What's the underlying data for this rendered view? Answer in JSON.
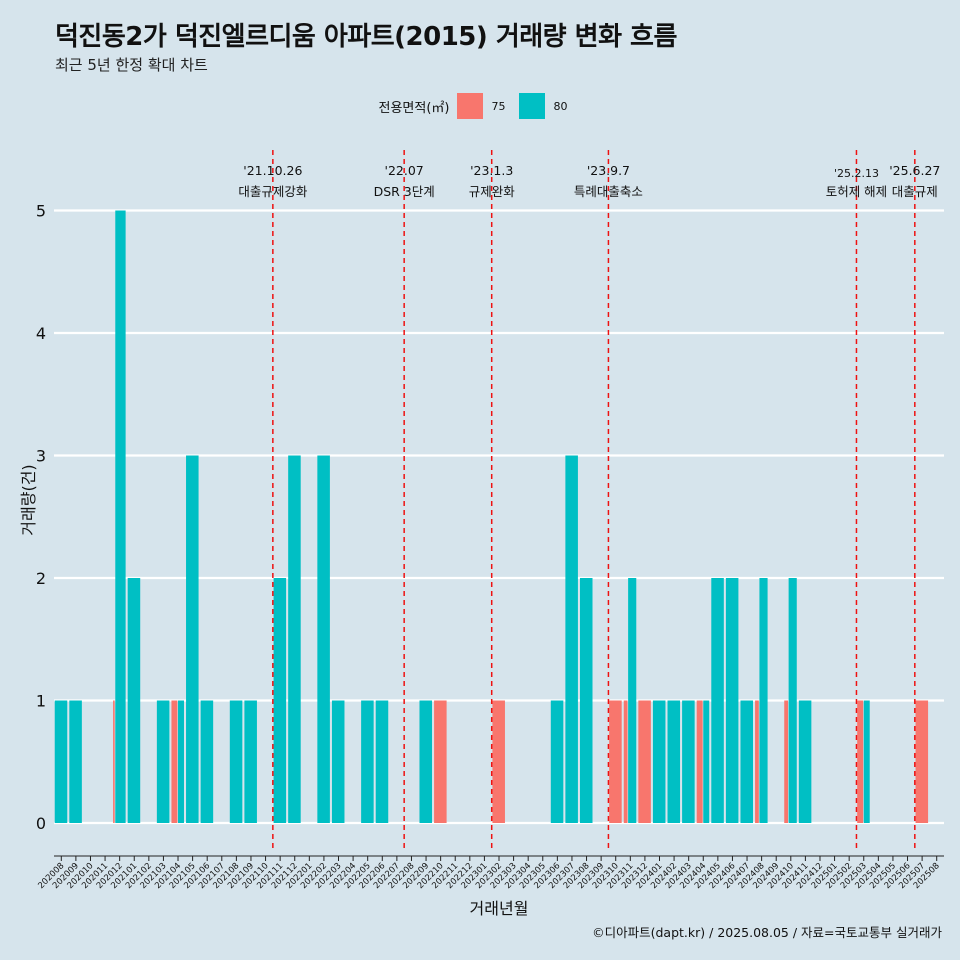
{
  "title": "덕진동2가 덕진엘르디움 아파트(2015) 거래량 변화 흐름",
  "subtitle": "최근 5년 한정 확대 차트",
  "caption": "©디아파트(dapt.kr) / 2025.08.05 / 자료=국토교통부 실거래가",
  "legend": {
    "title": "전용면적(㎡)",
    "items": [
      {
        "label": "75",
        "color": "#f8766d"
      },
      {
        "label": "80",
        "color": "#00bfc4"
      }
    ]
  },
  "chart_data": {
    "type": "bar",
    "xlabel": "거래년월",
    "ylabel": "거래량(건)",
    "ylim": [
      0,
      5
    ],
    "y_ticks": [
      "0",
      "1",
      "2",
      "3",
      "4",
      "5"
    ],
    "grid": true,
    "legend_position": "top",
    "categories": [
      "202008",
      "202009",
      "202010",
      "202011",
      "202012",
      "202101",
      "202102",
      "202103",
      "202104",
      "202105",
      "202106",
      "202107",
      "202108",
      "202109",
      "202110",
      "202111",
      "202112",
      "202201",
      "202202",
      "202203",
      "202204",
      "202205",
      "202206",
      "202207",
      "202208",
      "202209",
      "202210",
      "202211",
      "202212",
      "202301",
      "202302",
      "202303",
      "202304",
      "202305",
      "202306",
      "202307",
      "202308",
      "202309",
      "202310",
      "202311",
      "202312",
      "202401",
      "202402",
      "202403",
      "202404",
      "202405",
      "202406",
      "202407",
      "202408",
      "202409",
      "202410",
      "202411",
      "202412",
      "202501",
      "202502",
      "202503",
      "202504",
      "202505",
      "202506",
      "202507",
      "202508"
    ],
    "series": [
      {
        "name": "75",
        "color": "#f8766d",
        "values": [
          0,
          0,
          0,
          0,
          1,
          0,
          0,
          0,
          1,
          0,
          0,
          0,
          0,
          0,
          0,
          0,
          0,
          0,
          0,
          0,
          0,
          0,
          0,
          0,
          0,
          0,
          1,
          0,
          0,
          0,
          1,
          0,
          0,
          0,
          0,
          0,
          0,
          0,
          1,
          1,
          1,
          0,
          0,
          0,
          1,
          0,
          0,
          0,
          1,
          0,
          1,
          0,
          0,
          0,
          0,
          1,
          0,
          0,
          0,
          1,
          0
        ]
      },
      {
        "name": "80",
        "color": "#00bfc4",
        "values": [
          1,
          1,
          0,
          0,
          5,
          2,
          0,
          1,
          1,
          3,
          1,
          0,
          1,
          1,
          0,
          2,
          3,
          0,
          3,
          1,
          0,
          1,
          1,
          0,
          0,
          1,
          0,
          0,
          0,
          0,
          0,
          0,
          0,
          0,
          1,
          3,
          2,
          0,
          0,
          2,
          0,
          1,
          1,
          1,
          1,
          2,
          2,
          1,
          2,
          0,
          2,
          1,
          0,
          0,
          0,
          1,
          0,
          0,
          0,
          0,
          0
        ]
      }
    ],
    "events": [
      {
        "label_date": "'21.10.26",
        "label_text": "대출규제강화",
        "category": "202110"
      },
      {
        "label_date": "'22.07",
        "label_text": "DSR 3단계",
        "category": "202207"
      },
      {
        "label_date": "'23.1.3",
        "label_text": "규제완화",
        "category": "202301"
      },
      {
        "label_date": "'23.9.7",
        "label_text": "특례대출축소",
        "category": "202309"
      },
      {
        "label_date": "'25.2.13",
        "label_text": "토허제 해제",
        "category": "202502"
      },
      {
        "label_date": "'25.6.27",
        "label_text": "대출규제",
        "category": "202506"
      }
    ]
  }
}
